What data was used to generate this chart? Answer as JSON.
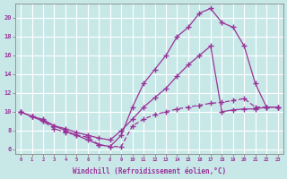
{
  "bg_color": "#c8e8e8",
  "grid_color": "#b0d8d8",
  "line_color": "#993399",
  "xlabel": "Windchill (Refroidissement éolien,°C)",
  "xlim": [
    -0.5,
    23.5
  ],
  "ylim": [
    5.5,
    21.5
  ],
  "yticks": [
    6,
    8,
    10,
    12,
    14,
    16,
    18,
    20
  ],
  "xticks": [
    0,
    1,
    2,
    3,
    4,
    5,
    6,
    7,
    8,
    9,
    10,
    11,
    12,
    13,
    14,
    15,
    16,
    17,
    18,
    19,
    20,
    21,
    22,
    23
  ],
  "line1_x": [
    0,
    1,
    2,
    3,
    4,
    5,
    6,
    7,
    8,
    9,
    10,
    11,
    12,
    13,
    14,
    15,
    16,
    17,
    18,
    19,
    20,
    21,
    22,
    23
  ],
  "line1_y": [
    10.0,
    9.5,
    9.0,
    8.5,
    8.0,
    7.5,
    7.0,
    6.5,
    6.3,
    7.5,
    10.5,
    13.0,
    14.5,
    16.0,
    18.0,
    19.0,
    20.5,
    21.0,
    19.5,
    19.0,
    17.0,
    13.0,
    10.5,
    10.5
  ],
  "line2_x": [
    0,
    1,
    2,
    3,
    4,
    5,
    6,
    7,
    8,
    9,
    10,
    11,
    12,
    13,
    14,
    15,
    16,
    17,
    18,
    19,
    20,
    21,
    22,
    23
  ],
  "line2_y": [
    10.0,
    9.5,
    9.2,
    8.5,
    8.2,
    7.8,
    7.5,
    7.2,
    7.0,
    8.0,
    9.2,
    10.5,
    11.5,
    12.5,
    13.8,
    15.0,
    16.0,
    17.0,
    10.0,
    10.2,
    10.3,
    10.3,
    10.5,
    10.5
  ],
  "line3_x": [
    0,
    1,
    2,
    3,
    4,
    5,
    6,
    7,
    8,
    9,
    10,
    11,
    12,
    13,
    14,
    15,
    16,
    17,
    18,
    19,
    20,
    21,
    22,
    23
  ],
  "line3_y": [
    10.0,
    9.5,
    9.0,
    8.2,
    7.8,
    7.5,
    7.3,
    6.5,
    6.3,
    6.3,
    8.5,
    9.2,
    9.7,
    10.0,
    10.3,
    10.5,
    10.7,
    10.9,
    11.0,
    11.2,
    11.4,
    10.5,
    10.5,
    10.5
  ]
}
